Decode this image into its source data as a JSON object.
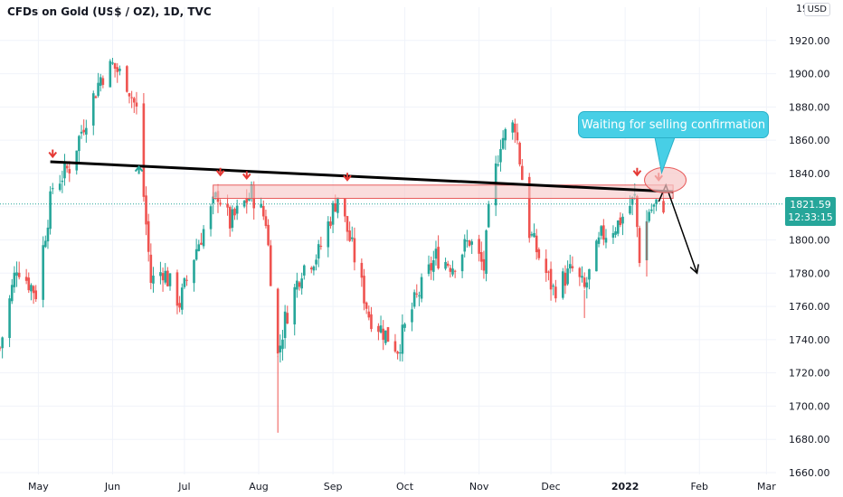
{
  "title": "CFDs on Gold (US$ / OZ), 1D, TVC",
  "currency": "USD",
  "last_price": {
    "value": "1821.59",
    "countdown": "12:33:15"
  },
  "annotation": "Waiting for selling confirmation",
  "colors": {
    "up": "#26a69a",
    "down": "#ef5350",
    "trendline": "#000000",
    "zone": "#f7c6c6",
    "zone_border": "#e85c5c",
    "callout": "#47cfe6",
    "arrow_marker": "#e53935"
  },
  "chart_data": {
    "type": "candlestick",
    "ylim": [
      1660,
      1940
    ],
    "y_ticks": [
      1660,
      1680,
      1700,
      1720,
      1740,
      1760,
      1780,
      1800,
      1820,
      1840,
      1860,
      1880,
      1900,
      1920
    ],
    "y_tick_labels": [
      "1660.00",
      "1680.00",
      "1700.00",
      "1720.00",
      "1740.00",
      "1760.00",
      "1780.00",
      "1800.00",
      "1820.00",
      "1840.00",
      "1860.00",
      "1880.00",
      "1900.00",
      "1920.00"
    ],
    "x_ticks": [
      "May",
      "Jun",
      "Jul",
      "Aug",
      "Sep",
      "Oct",
      "Nov",
      "Dec",
      "2022",
      "Feb",
      "Mar"
    ],
    "x_tick_positions": [
      "2021-05-01",
      "2021-06-01",
      "2021-07-01",
      "2021-08-01",
      "2021-09-01",
      "2021-10-01",
      "2021-11-01",
      "2021-12-01",
      "2022-01-01",
      "2022-02-01",
      "2022-03-01"
    ],
    "x_range": [
      "2021-04-15",
      "2022-03-05"
    ],
    "price_path": [
      [
        "2021-04-15",
        1735
      ],
      [
        "2021-04-22",
        1785
      ],
      [
        "2021-04-30",
        1768
      ],
      [
        "2021-05-07",
        1832
      ],
      [
        "2021-05-14",
        1844
      ],
      [
        "2021-05-20",
        1870
      ],
      [
        "2021-05-27",
        1898
      ],
      [
        "2021-06-01",
        1905
      ],
      [
        "2021-06-07",
        1895
      ],
      [
        "2021-06-11",
        1878
      ],
      [
        "2021-06-17",
        1775
      ],
      [
        "2021-06-22",
        1782
      ],
      [
        "2021-06-29",
        1762
      ],
      [
        "2021-07-06",
        1795
      ],
      [
        "2021-07-15",
        1828
      ],
      [
        "2021-07-20",
        1810
      ],
      [
        "2021-07-29",
        1828
      ],
      [
        "2021-08-04",
        1812
      ],
      [
        "2021-08-09",
        1730
      ],
      [
        "2021-08-12",
        1752
      ],
      [
        "2021-08-19",
        1783
      ],
      [
        "2021-08-26",
        1792
      ],
      [
        "2021-09-03",
        1827
      ],
      [
        "2021-09-09",
        1795
      ],
      [
        "2021-09-16",
        1755
      ],
      [
        "2021-09-28",
        1735
      ],
      [
        "2021-10-05",
        1762
      ],
      [
        "2021-10-14",
        1790
      ],
      [
        "2021-10-21",
        1785
      ],
      [
        "2021-10-28",
        1800
      ],
      [
        "2021-11-03",
        1783
      ],
      [
        "2021-11-05",
        1815
      ],
      [
        "2021-11-10",
        1860
      ],
      [
        "2021-11-16",
        1870
      ],
      [
        "2021-11-22",
        1805
      ],
      [
        "2021-11-26",
        1790
      ],
      [
        "2021-12-02",
        1770
      ],
      [
        "2021-12-10",
        1782
      ],
      [
        "2021-12-15",
        1770
      ],
      [
        "2021-12-22",
        1802
      ],
      [
        "2021-12-29",
        1810
      ],
      [
        "2022-01-05",
        1825
      ],
      [
        "2022-01-07",
        1790
      ],
      [
        "2022-01-11",
        1818
      ],
      [
        "2022-01-17",
        1821.59
      ]
    ],
    "series": [
      {
        "name": "descending trendline",
        "type": "line",
        "points": [
          [
            "2021-05-06",
            1847
          ],
          [
            "2022-01-21",
            1829
          ]
        ]
      },
      {
        "name": "resistance zone",
        "type": "band",
        "range": [
          "2021-07-13",
          "2022-01-21"
        ],
        "y": [
          1825,
          1833
        ]
      },
      {
        "name": "touch markers down",
        "type": "markers",
        "points": [
          [
            "2021-05-07",
            1850
          ],
          [
            "2021-07-16",
            1839
          ],
          [
            "2021-07-27",
            1837
          ],
          [
            "2021-09-07",
            1836
          ],
          [
            "2022-01-06",
            1839
          ],
          [
            "2022-01-15",
            1836
          ]
        ]
      },
      {
        "name": "touch marker up",
        "type": "markers",
        "points": [
          [
            "2021-06-12",
            1844
          ]
        ]
      },
      {
        "name": "projection",
        "type": "line",
        "points": [
          [
            "2022-01-15",
            1823
          ],
          [
            "2022-01-18",
            1833
          ],
          [
            "2022-01-31",
            1780
          ]
        ]
      }
    ]
  }
}
